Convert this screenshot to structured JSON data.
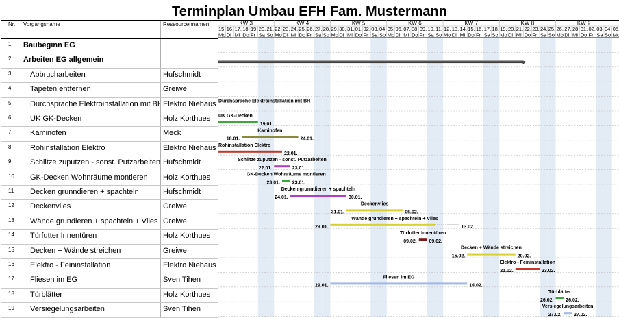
{
  "title": "Terminplan Umbau EFH Fam. Mustermann",
  "columns": {
    "nr": "Nr.",
    "name": "Vorgangsname",
    "resource": "Ressourcennamen"
  },
  "timescale": {
    "weeks": [
      "KW 3",
      "KW 4",
      "KW 5",
      "KW 6",
      "KW 7",
      "KW 8",
      "KW 9"
    ],
    "dates": [
      "15.",
      "16.",
      "17.",
      "18.",
      "19.",
      "20.",
      "21.",
      "22.",
      "23.",
      "24.",
      "25.",
      "26.",
      "27.",
      "28.",
      "29.",
      "30.",
      "31.",
      "01.",
      "02.",
      "03.",
      "04.",
      "05.",
      "06.",
      "07.",
      "08.",
      "09.",
      "10.",
      "11.",
      "12.",
      "13.",
      "14.",
      "15.",
      "16.",
      "17.",
      "18.",
      "19.",
      "20.",
      "21.",
      "22.",
      "23.",
      "24.",
      "25.",
      "26.",
      "27.",
      "28.",
      "01.",
      "02.",
      "03.",
      "04.",
      "05."
    ],
    "weekdays": [
      "Mo",
      "Di",
      "Mi",
      "Do",
      "Fr",
      "Sa",
      "So"
    ]
  },
  "rows": [
    {
      "nr": "1",
      "name": "Baubeginn EG",
      "resource": "",
      "bold": true
    },
    {
      "nr": "2",
      "name": "Arbeiten EG allgemein",
      "resource": "",
      "bold": true
    },
    {
      "nr": "3",
      "name": "Abbrucharbeiten",
      "resource": "Hufschmidt"
    },
    {
      "nr": "4",
      "name": "Tapeten entfernen",
      "resource": "Greiwe"
    },
    {
      "nr": "5",
      "name": "Durchsprache Elektroinstallation mit BH",
      "resource": "Elektro Niehaus"
    },
    {
      "nr": "6",
      "name": "UK GK-Decken",
      "resource": "Holz Korthues"
    },
    {
      "nr": "7",
      "name": "Kaminofen",
      "resource": "Meck"
    },
    {
      "nr": "8",
      "name": "Rohinstallation Elektro",
      "resource": "Elektro Niehaus"
    },
    {
      "nr": "9",
      "name": "Schlitze zuputzen - sonst. Putzarbeiten",
      "resource": "Hufschmidt"
    },
    {
      "nr": "10",
      "name": "GK-Decken Wohnräume montieren",
      "resource": "Holz Korthues"
    },
    {
      "nr": "11",
      "name": "Decken grunndieren + spachteln",
      "resource": "Hufschmidt"
    },
    {
      "nr": "12",
      "name": "Deckenvlies",
      "resource": "Greiwe"
    },
    {
      "nr": "13",
      "name": "Wände grundieren + spachteln + Vlies",
      "resource": "Greiwe"
    },
    {
      "nr": "14",
      "name": "Türfutter Innentüren",
      "resource": "Holz Korthues"
    },
    {
      "nr": "15",
      "name": "Decken + Wände streichen",
      "resource": "Greiwe"
    },
    {
      "nr": "16",
      "name": "Elektro - Feininstallation",
      "resource": "Elektro Niehaus"
    },
    {
      "nr": "17",
      "name": "Fliesen im EG",
      "resource": "Sven Tihen"
    },
    {
      "nr": "18",
      "name": "Türblätter",
      "resource": "Holz Korthues"
    },
    {
      "nr": "19",
      "name": "Versiegelungsarbeiten",
      "resource": "Sven Tihen"
    }
  ],
  "chart_data": {
    "type": "gantt",
    "title": "Terminplan Umbau EFH Fam. Mustermann",
    "x_start": "15.01.",
    "tasks": [
      {
        "row": 2,
        "label": "",
        "start_label": "",
        "end_label": "",
        "start": 0,
        "end": 38,
        "color": "#404040",
        "summary": true
      },
      {
        "row": 5,
        "label": "Durchsprache Elektroinstallation mit BH",
        "start_label": "",
        "end_label": "",
        "start": 0,
        "end": 0,
        "color": "",
        "label_only": true
      },
      {
        "row": 6,
        "label": "UK GK-Decken",
        "start_label": "",
        "end_label": "19.01.",
        "start": 0,
        "end": 5,
        "color": "#3aa83a"
      },
      {
        "row": 7,
        "label": "Kaminofen",
        "start_label": "18.01.",
        "end_label": "24.01.",
        "start": 3,
        "end": 10,
        "color": "#8a8a3a"
      },
      {
        "row": 8,
        "label": "Rohinstallation Elektro",
        "start_label": "",
        "end_label": "22.01.",
        "start": 0,
        "end": 8,
        "color": "#c0392b"
      },
      {
        "row": 9,
        "label": "Schlitze zuputzen - sonst. Putzarbeiten",
        "start_label": "22.01.",
        "end_label": "23.01.",
        "start": 7,
        "end": 9,
        "color": "#b040c0"
      },
      {
        "row": 10,
        "label": "GK-Decken Wohnräume montieren",
        "start_label": "23.01.",
        "end_label": "23.01.",
        "start": 8,
        "end": 9,
        "color": "#3aa83a"
      },
      {
        "row": 11,
        "label": "Decken grunndieren + spachteln",
        "start_label": "24.01.",
        "end_label": "30.01.",
        "start": 9,
        "end": 16,
        "color": "#b040c0"
      },
      {
        "row": 12,
        "label": "Deckenvlies",
        "start_label": "31.01.",
        "end_label": "06.02.",
        "start": 16,
        "end": 23,
        "color": "#d8d030"
      },
      {
        "row": 13,
        "label": "Wände grundieren + spachteln + Vlies",
        "start_label": "29.01.",
        "end_label": "13.02.",
        "start": 14,
        "end": 30,
        "color": "#d8d030",
        "dotted_from": 27
      },
      {
        "row": 14,
        "label": "Türfutter Innentüren",
        "start_label": "09.02.",
        "end_label": "09.02.",
        "start": 25,
        "end": 26,
        "color": "#7b1a1a"
      },
      {
        "row": 15,
        "label": "Decken + Wände streichen",
        "start_label": "15.02.",
        "end_label": "20.02.",
        "start": 31,
        "end": 37,
        "color": "#d8d030"
      },
      {
        "row": 16,
        "label": "Elektro - Feininstallation",
        "start_label": "21.02.",
        "end_label": "23.02.",
        "start": 37,
        "end": 40,
        "color": "#c0392b"
      },
      {
        "row": 17,
        "label": "Fliesen im EG",
        "start_label": "29.01.",
        "end_label": "14.02.",
        "start": 14,
        "end": 31,
        "color": "#9fb8e8"
      },
      {
        "row": 18,
        "label": "Türblätter",
        "start_label": "26.02.",
        "end_label": "26.02.",
        "start": 42,
        "end": 43,
        "color": "#3aa83a"
      },
      {
        "row": 19,
        "label": "Versiegelungsarbeiten",
        "start_label": "27.02.",
        "end_label": "27.02.",
        "start": 43,
        "end": 44,
        "color": "#9fb8e8"
      }
    ]
  }
}
